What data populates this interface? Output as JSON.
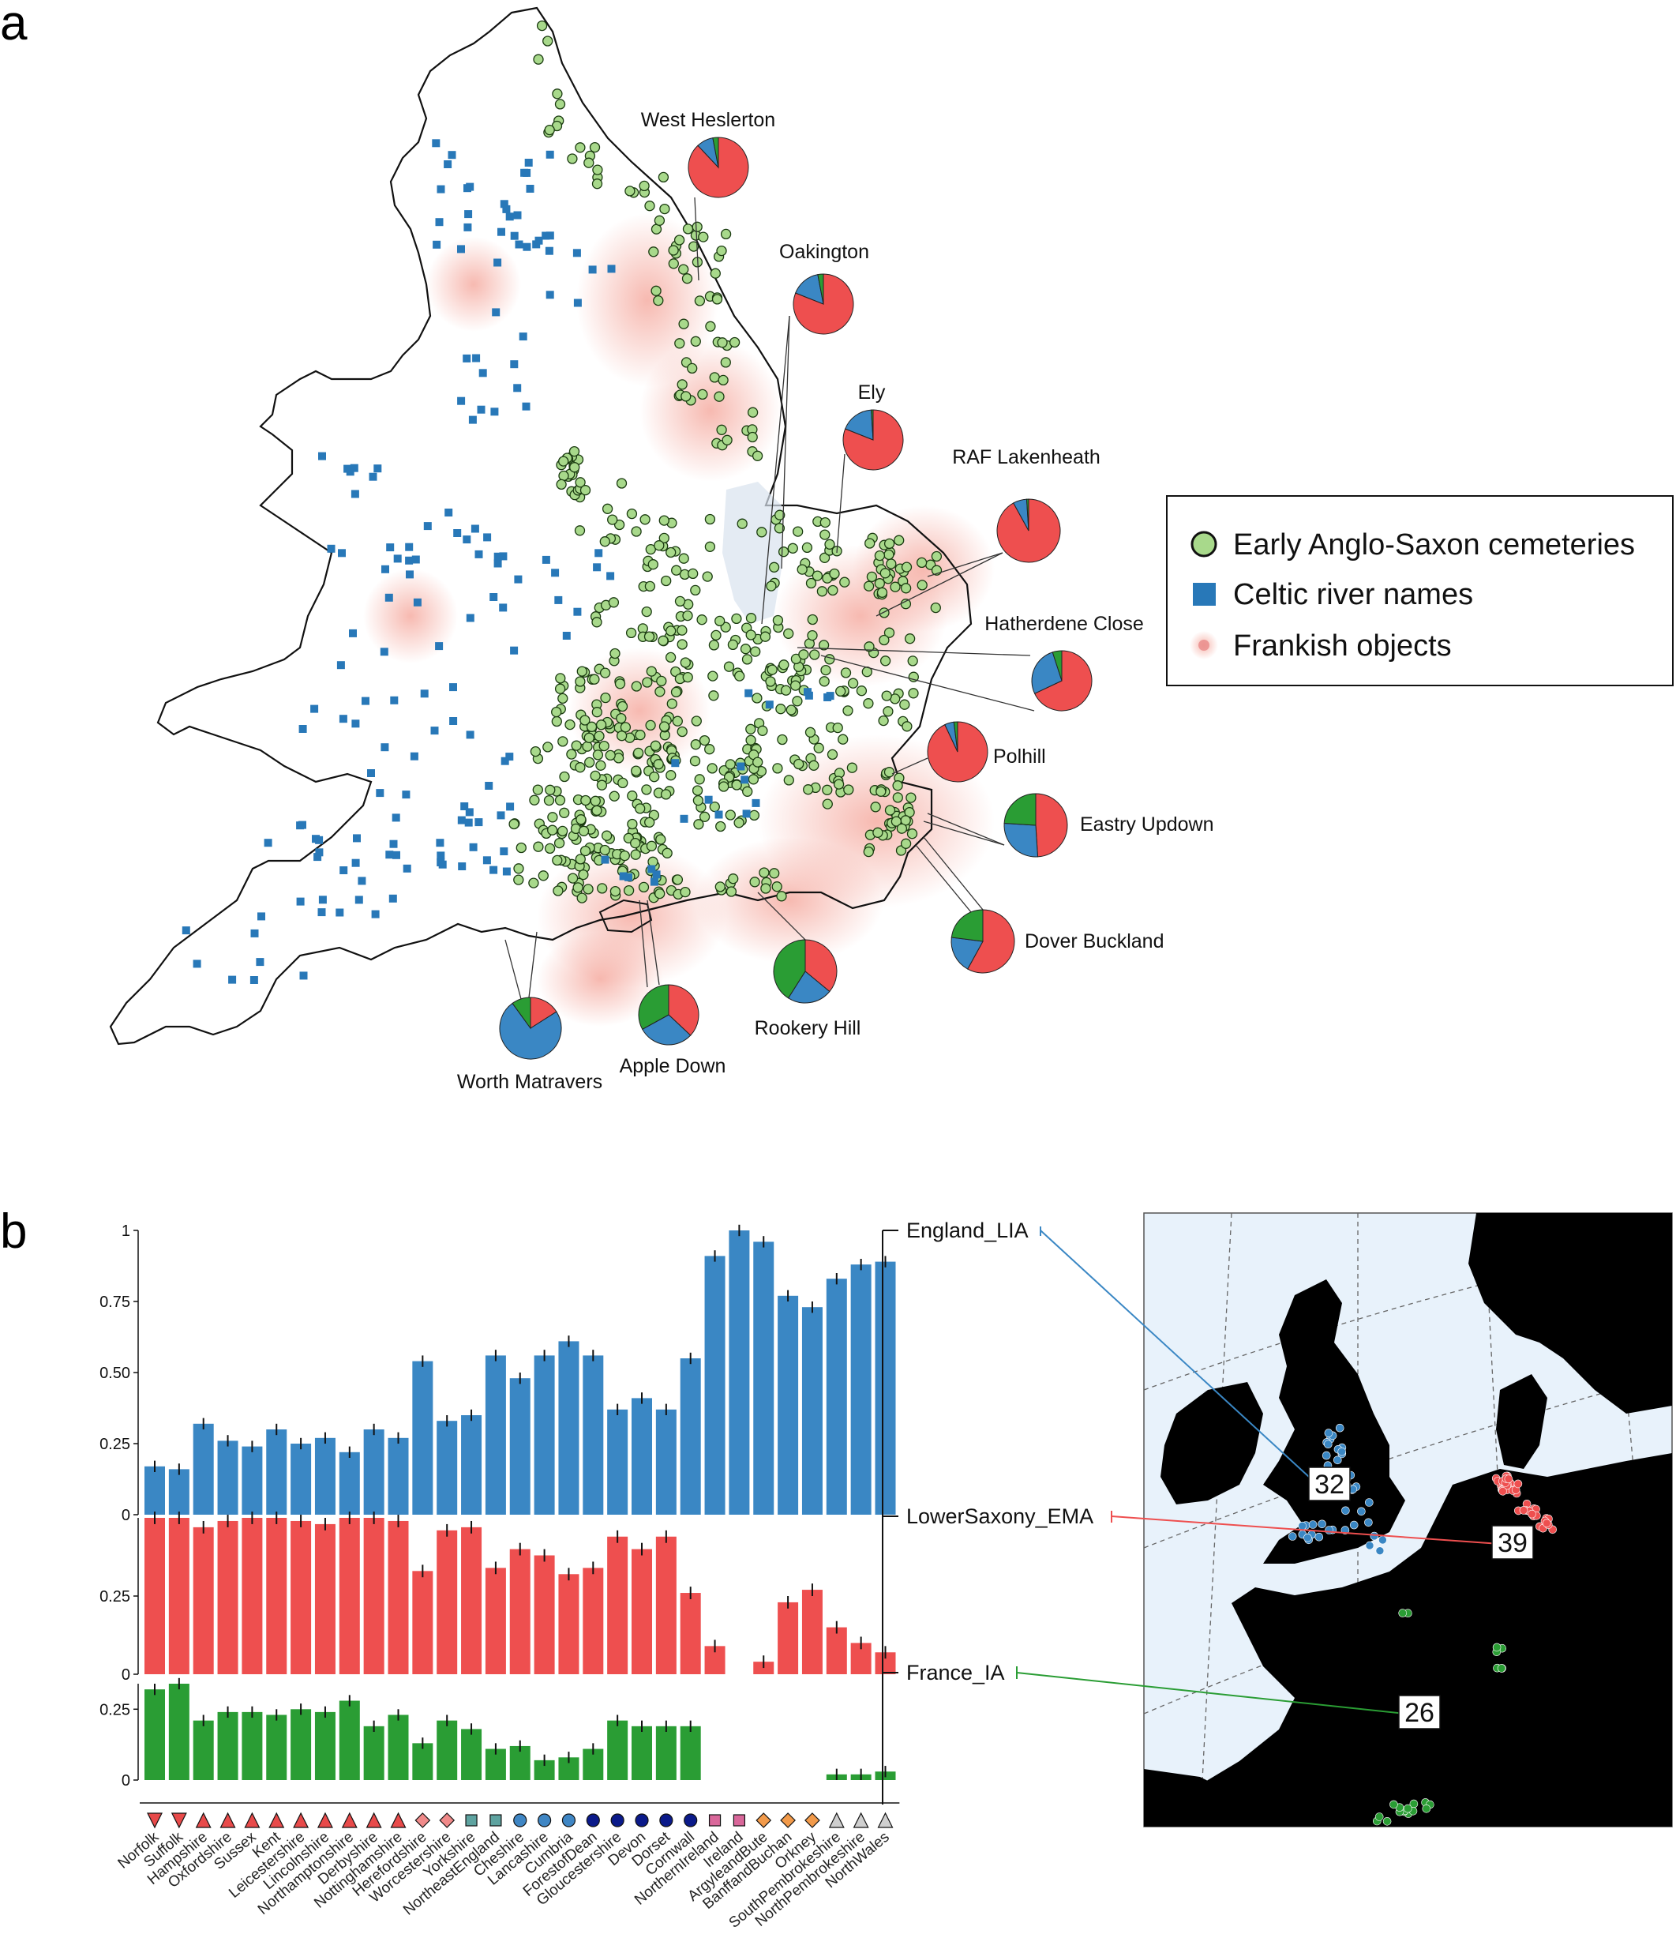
{
  "panels": {
    "a": "a",
    "b": "b"
  },
  "colors": {
    "cemetery": "#a8d98b",
    "river": "#2878b8",
    "frankish": "#f08070",
    "blue": "#3a87c4",
    "red": "#ee4f4f",
    "green": "#2a9d34"
  },
  "legend": {
    "items": [
      {
        "label": "Early Anglo-Saxon cemeteries",
        "icon": "green-circle-icon"
      },
      {
        "label": "Celtic river names",
        "icon": "blue-square-icon"
      },
      {
        "label": "Frankish objects",
        "icon": "red-blur-icon"
      }
    ]
  },
  "sites": [
    {
      "name": "West Heslerton",
      "fractions": {
        "blue": 0.09,
        "green": 0.03,
        "red": 0.88
      }
    },
    {
      "name": "Oakington",
      "fractions": {
        "blue": 0.16,
        "green": 0.03,
        "red": 0.81
      }
    },
    {
      "name": "Ely",
      "fractions": {
        "blue": 0.18,
        "green": 0.01,
        "red": 0.81
      }
    },
    {
      "name": "RAF Lakenheath",
      "fractions": {
        "blue": 0.07,
        "green": 0.01,
        "red": 0.92
      }
    },
    {
      "name": "Hatherdene Close",
      "fractions": {
        "blue": 0.27,
        "green": 0.05,
        "red": 0.68
      }
    },
    {
      "name": "Polhill",
      "fractions": {
        "blue": 0.05,
        "green": 0.02,
        "red": 0.93
      }
    },
    {
      "name": "Eastry Updown",
      "fractions": {
        "blue": 0.27,
        "green": 0.24,
        "red": 0.49
      }
    },
    {
      "name": "Dover Buckland",
      "fractions": {
        "blue": 0.19,
        "green": 0.23,
        "red": 0.58
      }
    },
    {
      "name": "Rookery Hill",
      "fractions": {
        "blue": 0.23,
        "green": 0.41,
        "red": 0.36
      }
    },
    {
      "name": "Apple Down",
      "fractions": {
        "blue": 0.3,
        "green": 0.33,
        "red": 0.37
      }
    },
    {
      "name": "Worth Matravers",
      "fractions": {
        "blue": 0.74,
        "green": 0.1,
        "red": 0.16
      }
    }
  ],
  "chart_data": {
    "type": "bar",
    "categories": [
      "Norfolk",
      "Suffolk",
      "Hampshire",
      "Oxfordshire",
      "Sussex",
      "Kent",
      "Leicestershire",
      "Lincolnshire",
      "Northamptonshire",
      "Derbyshire",
      "Nottinghamshire",
      "Herefordshire",
      "Worcestershire",
      "Yorkshire",
      "NortheastEngland",
      "Cheshire",
      "Lancashire",
      "Cumbria",
      "ForestofDean",
      "Gloucestershire",
      "Devon",
      "Dorset",
      "Cornwall",
      "NorthernIreland",
      "Ireland",
      "ArgyleandBute",
      "BanffandBuchan",
      "Orkney",
      "SouthPembrokeshire",
      "NorthPembrokeshire",
      "NorthWales"
    ],
    "marker_shapes": [
      "triangle-down",
      "triangle-down",
      "triangle-up",
      "triangle-up",
      "triangle-up",
      "triangle-up",
      "triangle-up",
      "triangle-up",
      "triangle-up",
      "triangle-up",
      "triangle-up",
      "diamond",
      "diamond",
      "square",
      "square",
      "circle",
      "circle",
      "circle",
      "circle",
      "circle",
      "circle",
      "circle",
      "circle",
      "square",
      "square",
      "diamond",
      "diamond",
      "diamond",
      "triangle-up",
      "triangle-up",
      "triangle-up"
    ],
    "marker_colors": [
      "#e84a4a",
      "#e84a4a",
      "#e84a4a",
      "#e84a4a",
      "#e84a4a",
      "#e84a4a",
      "#e84a4a",
      "#e84a4a",
      "#e84a4a",
      "#e84a4a",
      "#e84a4a",
      "#f08a8a",
      "#f08a8a",
      "#5ea3a0",
      "#5ea3a0",
      "#3f86c4",
      "#3f86c4",
      "#3f86c4",
      "#0b1a8a",
      "#0b1a8a",
      "#0b1a8a",
      "#0b1a8a",
      "#0b1a8a",
      "#d9679a",
      "#d9679a",
      "#f29a4a",
      "#f29a4a",
      "#f29a4a",
      "#cfcfcf",
      "#cfcfcf",
      "#cfcfcf"
    ],
    "series": [
      {
        "name": "England_LIA",
        "values": [
          0.17,
          0.16,
          0.32,
          0.26,
          0.24,
          0.3,
          0.25,
          0.27,
          0.22,
          0.3,
          0.27,
          0.54,
          0.33,
          0.35,
          0.56,
          0.48,
          0.56,
          0.61,
          0.56,
          0.37,
          0.41,
          0.37,
          0.55,
          0.91,
          1.0,
          0.96,
          0.77,
          0.73,
          0.83,
          0.88,
          0.89
        ]
      },
      {
        "name": "LowerSaxony_EMA",
        "values": [
          0.51,
          0.5,
          0.47,
          0.49,
          0.52,
          0.5,
          0.49,
          0.48,
          0.51,
          0.51,
          0.49,
          0.33,
          0.46,
          0.47,
          0.34,
          0.4,
          0.38,
          0.32,
          0.34,
          0.44,
          0.4,
          0.44,
          0.26,
          0.09,
          0.0,
          0.04,
          0.23,
          0.27,
          0.15,
          0.1,
          0.07
        ]
      },
      {
        "name": "France_IA",
        "values": [
          0.32,
          0.34,
          0.21,
          0.24,
          0.24,
          0.23,
          0.25,
          0.24,
          0.28,
          0.19,
          0.23,
          0.13,
          0.21,
          0.18,
          0.11,
          0.12,
          0.07,
          0.08,
          0.11,
          0.21,
          0.19,
          0.19,
          0.19,
          0.0,
          0.0,
          0.0,
          0.0,
          0.0,
          0.02,
          0.02,
          0.03
        ]
      }
    ],
    "y_ticks_top": [
      "0",
      "0.25",
      "0.50",
      "0.75",
      "1"
    ],
    "y_ticks_mid": [
      "0",
      "0.25"
    ],
    "y_ticks_bot": [
      "0",
      "0.25"
    ],
    "ylim_top": [
      0,
      1
    ],
    "ylim_mid": [
      0,
      0.5
    ],
    "ylim_bot": [
      0,
      0.34
    ]
  },
  "sources": [
    {
      "name": "England_LIA",
      "count": "32"
    },
    {
      "name": "LowerSaxony_EMA",
      "count": "39"
    },
    {
      "name": "France_IA",
      "count": "26"
    }
  ]
}
